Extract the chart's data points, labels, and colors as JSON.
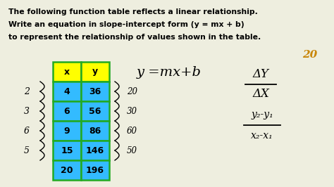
{
  "bg_color": "#eeeedf",
  "title_lines": [
    "The following function table reflects a linear relationship.",
    "Write an equation in slope-intercept form (y = mx + b)",
    "to represent the relationship of values shown in the table."
  ],
  "table_header_color": "#ffff00",
  "table_cell_color": "#33bbff",
  "table_border_color": "#22aa22",
  "table_x_vals": [
    4,
    6,
    9,
    15,
    20
  ],
  "table_y_vals": [
    36,
    56,
    86,
    146,
    196
  ],
  "left_diffs": [
    "2",
    "3",
    "6",
    "5"
  ],
  "right_diffs": [
    "20",
    "30",
    "60",
    "50"
  ],
  "annotation_color": "#c8860a"
}
